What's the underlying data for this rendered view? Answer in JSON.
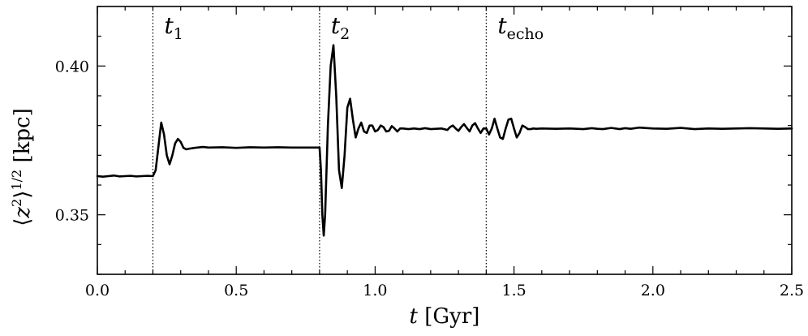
{
  "chart_data": {
    "type": "line",
    "xlabel": "t [Gyr]",
    "ylabel": "⟨z²⟩^1/2 [kpc]",
    "xlim": [
      0.0,
      2.5
    ],
    "ylim": [
      0.33,
      0.42
    ],
    "x_ticks": [
      0.0,
      0.5,
      1.0,
      1.5,
      2.0,
      2.5
    ],
    "x_tick_labels": [
      "0.0",
      "0.5",
      "1.0",
      "1.5",
      "2.0",
      "2.5"
    ],
    "y_ticks": [
      0.35,
      0.4
    ],
    "y_tick_labels": [
      "0.35",
      "0.40"
    ],
    "grid": false,
    "series_color": "#000000",
    "markers": [
      {
        "x": 0.2,
        "label": "t",
        "sub": "1"
      },
      {
        "x": 0.8,
        "label": "t",
        "sub": "2"
      },
      {
        "x": 1.4,
        "label": "t",
        "sub": "echo"
      }
    ],
    "series": [
      {
        "x": [
          0.0,
          0.02,
          0.04,
          0.06,
          0.08,
          0.1,
          0.12,
          0.14,
          0.16,
          0.18,
          0.2,
          0.21,
          0.22,
          0.23,
          0.24,
          0.25,
          0.26,
          0.27,
          0.28,
          0.29,
          0.3,
          0.31,
          0.32,
          0.33,
          0.35,
          0.38,
          0.4,
          0.45,
          0.5,
          0.55,
          0.6,
          0.65,
          0.7,
          0.75,
          0.79,
          0.8,
          0.805,
          0.81,
          0.815,
          0.82,
          0.83,
          0.84,
          0.85,
          0.86,
          0.87,
          0.88,
          0.89,
          0.9,
          0.91,
          0.92,
          0.93,
          0.94,
          0.95,
          0.96,
          0.97,
          0.98,
          0.99,
          1.0,
          1.01,
          1.02,
          1.03,
          1.04,
          1.05,
          1.06,
          1.07,
          1.08,
          1.09,
          1.1,
          1.12,
          1.14,
          1.16,
          1.18,
          1.2,
          1.22,
          1.24,
          1.26,
          1.27,
          1.28,
          1.29,
          1.3,
          1.31,
          1.32,
          1.33,
          1.34,
          1.35,
          1.36,
          1.37,
          1.38,
          1.39,
          1.4,
          1.41,
          1.42,
          1.43,
          1.44,
          1.45,
          1.46,
          1.47,
          1.48,
          1.49,
          1.5,
          1.51,
          1.52,
          1.53,
          1.54,
          1.55,
          1.56,
          1.57,
          1.58,
          1.6,
          1.65,
          1.7,
          1.75,
          1.78,
          1.8,
          1.82,
          1.85,
          1.88,
          1.9,
          1.92,
          1.95,
          2.0,
          2.05,
          2.1,
          2.15,
          2.2,
          2.25,
          2.3,
          2.35,
          2.4,
          2.45,
          2.5
        ],
        "y": [
          0.363,
          0.3628,
          0.363,
          0.3632,
          0.3629,
          0.363,
          0.3631,
          0.3629,
          0.363,
          0.3631,
          0.363,
          0.365,
          0.373,
          0.381,
          0.377,
          0.37,
          0.367,
          0.37,
          0.374,
          0.3755,
          0.3745,
          0.3725,
          0.372,
          0.3722,
          0.3725,
          0.3728,
          0.3726,
          0.3727,
          0.3725,
          0.3727,
          0.3726,
          0.3727,
          0.3726,
          0.3726,
          0.3726,
          0.3726,
          0.365,
          0.35,
          0.343,
          0.35,
          0.38,
          0.4,
          0.407,
          0.39,
          0.365,
          0.359,
          0.37,
          0.386,
          0.389,
          0.382,
          0.376,
          0.379,
          0.381,
          0.378,
          0.3775,
          0.38,
          0.38,
          0.378,
          0.3785,
          0.38,
          0.3795,
          0.378,
          0.3782,
          0.3798,
          0.379,
          0.378,
          0.379,
          0.379,
          0.3788,
          0.379,
          0.3788,
          0.3791,
          0.3788,
          0.3789,
          0.379,
          0.3785,
          0.3795,
          0.38,
          0.379,
          0.3782,
          0.3795,
          0.3805,
          0.3792,
          0.378,
          0.38,
          0.3808,
          0.379,
          0.3775,
          0.379,
          0.379,
          0.377,
          0.379,
          0.3823,
          0.379,
          0.376,
          0.3755,
          0.379,
          0.382,
          0.3823,
          0.379,
          0.376,
          0.3775,
          0.38,
          0.3795,
          0.3788,
          0.3788,
          0.379,
          0.3789,
          0.379,
          0.3789,
          0.379,
          0.3788,
          0.3791,
          0.3789,
          0.3788,
          0.3792,
          0.3788,
          0.3791,
          0.3789,
          0.3793,
          0.379,
          0.3789,
          0.3792,
          0.3788,
          0.379,
          0.3789,
          0.379,
          0.3791,
          0.379,
          0.3789,
          0.379
        ]
      }
    ]
  }
}
